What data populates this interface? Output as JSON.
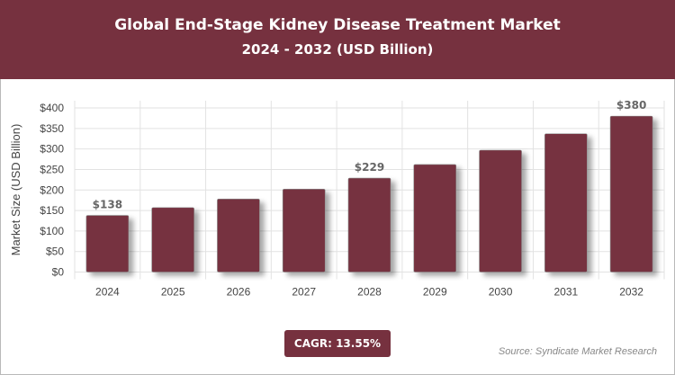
{
  "header": {
    "title": "Global End-Stage Kidney Disease Treatment Market",
    "subtitle": "2024 - 2032 (USD Billion)"
  },
  "chart_data": {
    "type": "bar",
    "categories": [
      "2024",
      "2025",
      "2026",
      "2027",
      "2028",
      "2029",
      "2030",
      "2031",
      "2032"
    ],
    "values": [
      138,
      157,
      178,
      202,
      229,
      262,
      297,
      337,
      380
    ],
    "data_labels": {
      "2024": "$138",
      "2028": "$229",
      "2032": "$380"
    },
    "ylabel": "Market Size (USD Billion)",
    "ylim": [
      0,
      400
    ],
    "yticks": [
      "$0",
      "$50",
      "$100",
      "$150",
      "$200",
      "$250",
      "$300",
      "$350",
      "$400"
    ],
    "grid": true,
    "bar_color": "#76313f"
  },
  "footer": {
    "cagr": "CAGR: 13.55%",
    "source": "Source: Syndicate Market Research"
  }
}
